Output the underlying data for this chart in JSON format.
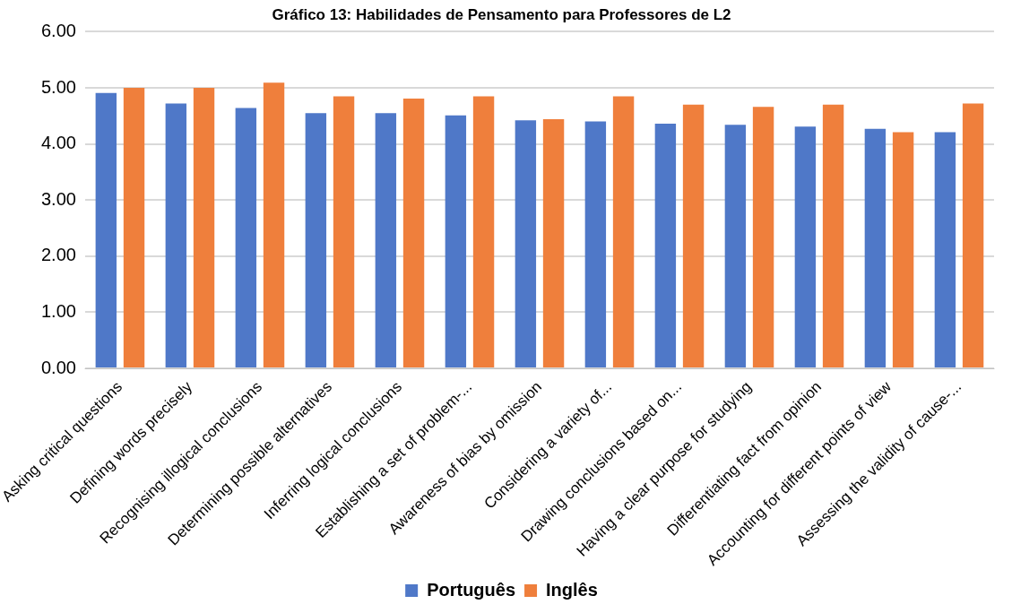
{
  "chart_data": {
    "type": "bar",
    "title": "Gráfico 13: Habilidades de Pensamento para Professores de L2",
    "categories": [
      "Asking critical questions",
      "Defining words precisely",
      "Recognising illogical conclusions",
      "Determining possible alternatives",
      "Inferring logical conclusions",
      "Establishing a set of problem-...",
      "Awareness of bias by omission",
      "Considering a variety of...",
      "Drawing conclusions based on...",
      "Having a clear purpose for studying",
      "Differentiating fact from opinion",
      "Accounting for different points of view",
      "Assessing the validity of cause-..."
    ],
    "series": [
      {
        "name": "Português",
        "color": "#4f78c8",
        "values": [
          4.91,
          4.72,
          4.64,
          4.55,
          4.55,
          4.51,
          4.42,
          4.4,
          4.36,
          4.34,
          4.31,
          4.27,
          4.21
        ]
      },
      {
        "name": "Inglês",
        "color": "#ef7f3c",
        "values": [
          5.0,
          5.0,
          5.09,
          4.85,
          4.81,
          4.85,
          4.44,
          4.85,
          4.7,
          4.66,
          4.7,
          4.21,
          4.72
        ]
      }
    ],
    "ylim": [
      0,
      6
    ],
    "yticks": [
      {
        "value": 0,
        "label": "0.00"
      },
      {
        "value": 1,
        "label": "1.00"
      },
      {
        "value": 2,
        "label": "2.00"
      },
      {
        "value": 3,
        "label": "3.00"
      },
      {
        "value": 4,
        "label": "4.00"
      },
      {
        "value": 5,
        "label": "5.00"
      },
      {
        "value": 6,
        "label": "6.00"
      }
    ],
    "grid": "y",
    "legend": "bottom"
  }
}
